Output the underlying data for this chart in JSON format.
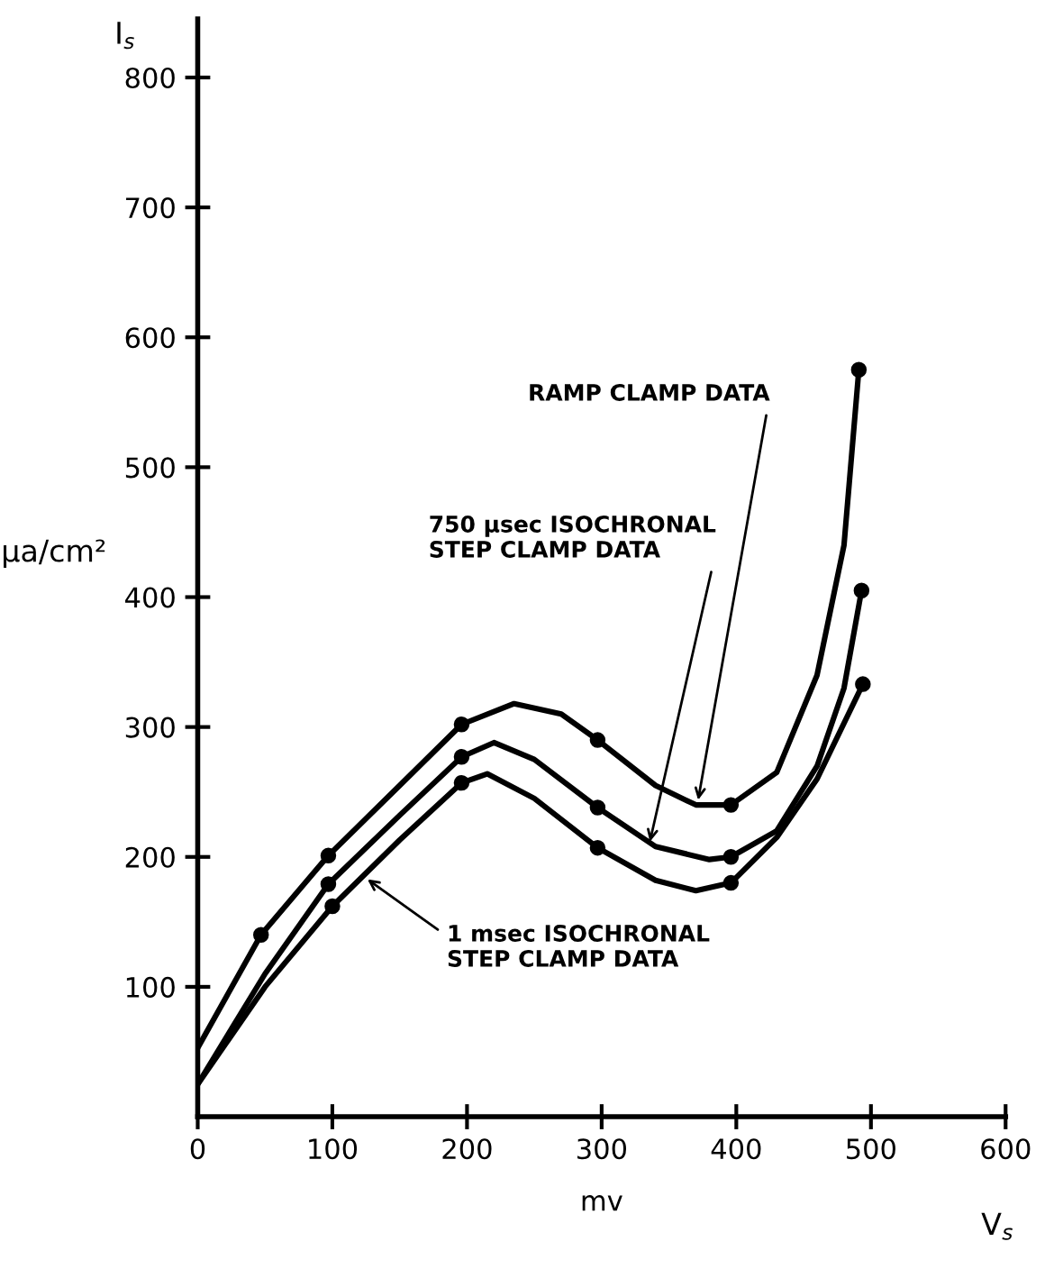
{
  "chart_data": {
    "type": "line",
    "xlabel": "mv",
    "ylabel": "μa/cm²",
    "xlim": [
      0,
      600
    ],
    "ylim": [
      0,
      845
    ],
    "xticks": [
      0,
      100,
      200,
      300,
      400,
      500,
      600
    ],
    "yticks": [
      100,
      200,
      300,
      400,
      500,
      600,
      700,
      800
    ],
    "grid": false,
    "legend": false,
    "line_style": "solid",
    "series": [
      {
        "marker": "none",
        "color": "#000000",
        "x": [
          0,
          47,
          97,
          150,
          196,
          235,
          270,
          297,
          340,
          370,
          396,
          430,
          460,
          480,
          491
        ],
        "values": [
          53,
          140,
          201,
          255,
          302,
          318,
          310,
          290,
          255,
          240,
          240,
          265,
          340,
          440,
          575
        ]
      },
      {
        "type": "scatter",
        "marker": "circle",
        "color": "#000000",
        "x": [
          47,
          97,
          196,
          297,
          396,
          491
        ],
        "values": [
          140,
          201,
          302,
          290,
          240,
          575
        ]
      },
      {
        "marker": "none",
        "color": "#000000",
        "x": [
          0,
          50,
          97,
          150,
          196,
          220,
          250,
          297,
          340,
          380,
          396,
          430,
          460,
          480,
          493
        ],
        "values": [
          25,
          110,
          179,
          232,
          277,
          288,
          275,
          238,
          208,
          198,
          200,
          220,
          270,
          330,
          405
        ]
      },
      {
        "type": "scatter",
        "marker": "circle",
        "color": "#000000",
        "x": [
          97,
          196,
          297,
          396,
          493
        ],
        "values": [
          179,
          277,
          238,
          200,
          405
        ]
      },
      {
        "marker": "none",
        "color": "#000000",
        "x": [
          0,
          50,
          100,
          150,
          196,
          215,
          250,
          297,
          340,
          370,
          396,
          430,
          460,
          494
        ],
        "values": [
          25,
          100,
          162,
          213,
          257,
          264,
          245,
          207,
          182,
          174,
          180,
          215,
          260,
          333
        ]
      },
      {
        "type": "scatter",
        "marker": "circle",
        "color": "#000000",
        "x": [
          100,
          196,
          297,
          396,
          494
        ],
        "values": [
          162,
          257,
          207,
          180,
          333
        ]
      }
    ],
    "annotations": [
      {
        "text": "RAMP CLAMP DATA",
        "x": 371,
        "y": 240
      },
      {
        "text": "750 μsec ISOCHRONAL\nSTEP CLAMP DATA",
        "x": 335,
        "y": 208
      },
      {
        "text": "1 msec ISOCHRONAL\nSTEP CLAMP DATA",
        "x": 123,
        "y": 185
      },
      "I$_{s}$",
      "V$_{s}$"
    ]
  }
}
